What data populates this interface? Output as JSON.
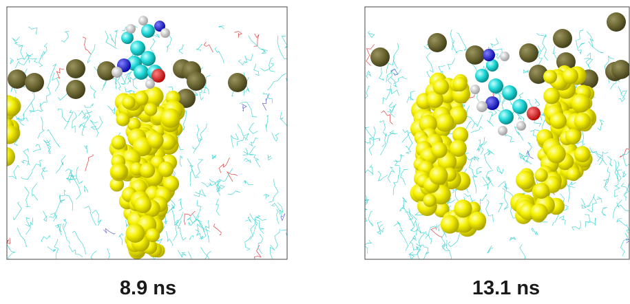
{
  "panels": [
    {
      "caption": "8.9 ns"
    },
    {
      "caption": "13.1 ns"
    }
  ]
}
